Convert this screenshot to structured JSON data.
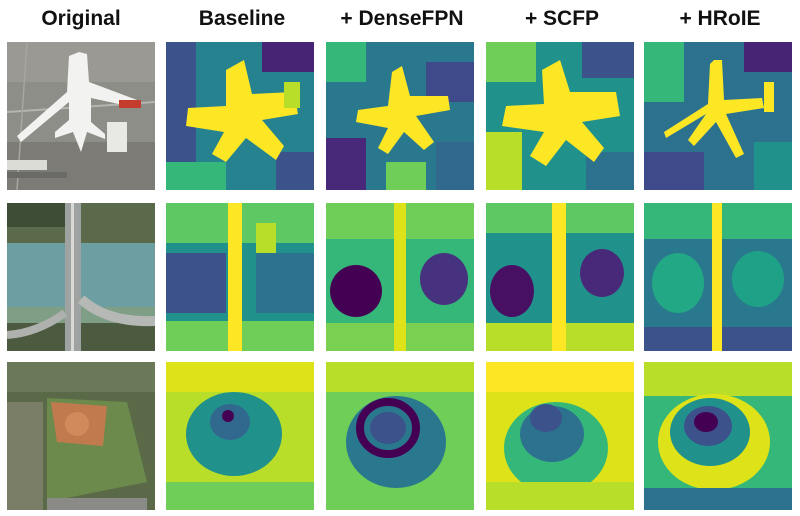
{
  "headers": [
    "Original",
    "Baseline",
    "+ DenseFPN",
    "+ SCFP",
    "+ HRoIE"
  ],
  "rows": [
    {
      "subject": "airplane"
    },
    {
      "subject": "bridge"
    },
    {
      "subject": "ground-track-field"
    }
  ],
  "colormap": {
    "low": "#440154",
    "mid": "#21918c",
    "high": "#fde725"
  }
}
